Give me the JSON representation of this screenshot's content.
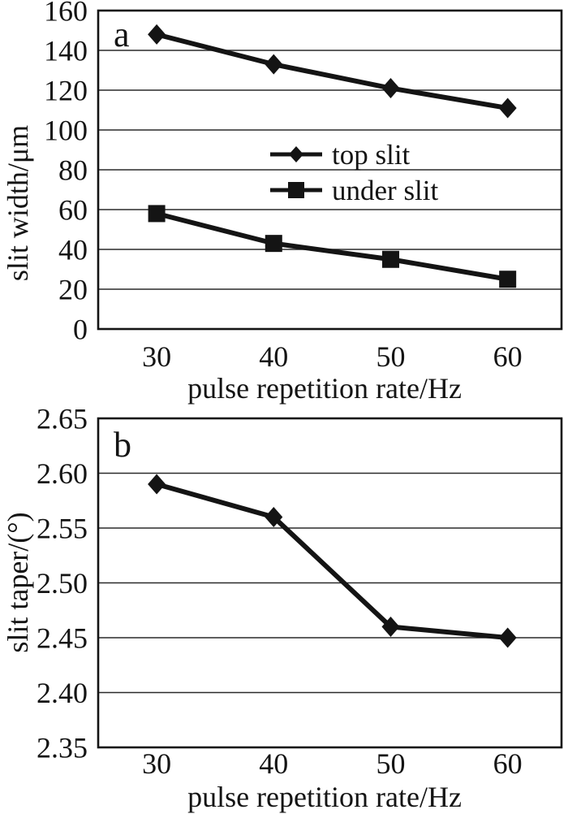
{
  "figure": {
    "description": "Two-panel line chart: slit width and slit taper versus pulse repetition rate",
    "colors": {
      "ink": "#141414",
      "grid": "#2a2a2a",
      "background": "#ffffff"
    }
  },
  "chart_data": [
    {
      "type": "line",
      "panel_label": "a",
      "x": [
        30,
        40,
        50,
        60
      ],
      "xlabel": "pulse repetition rate/Hz",
      "ylabel": "slit width/μm",
      "xlim": [
        25,
        64.6
      ],
      "ylim": [
        0,
        160
      ],
      "ytick_step": 20,
      "ytick_decimals": 0,
      "grid": "horizontal",
      "legend": {
        "position": "inside-center",
        "entries": [
          "top slit",
          "under slit"
        ]
      },
      "series": [
        {
          "name": "top slit",
          "marker": "diamond",
          "values": [
            148,
            133,
            121,
            111
          ]
        },
        {
          "name": "under slit",
          "marker": "square",
          "values": [
            58,
            43,
            35,
            25
          ]
        }
      ]
    },
    {
      "type": "line",
      "panel_label": "b",
      "x": [
        30,
        40,
        50,
        60
      ],
      "xlabel": "pulse repetition rate/Hz",
      "ylabel": "slit taper/(°)",
      "xlim": [
        25,
        64.6
      ],
      "ylim": [
        2.35,
        2.65
      ],
      "ytick_step": 0.05,
      "ytick_decimals": 2,
      "grid": "horizontal",
      "legend": null,
      "series": [
        {
          "name": "slit taper",
          "marker": "diamond",
          "values": [
            2.59,
            2.56,
            2.46,
            2.45
          ]
        }
      ]
    }
  ]
}
